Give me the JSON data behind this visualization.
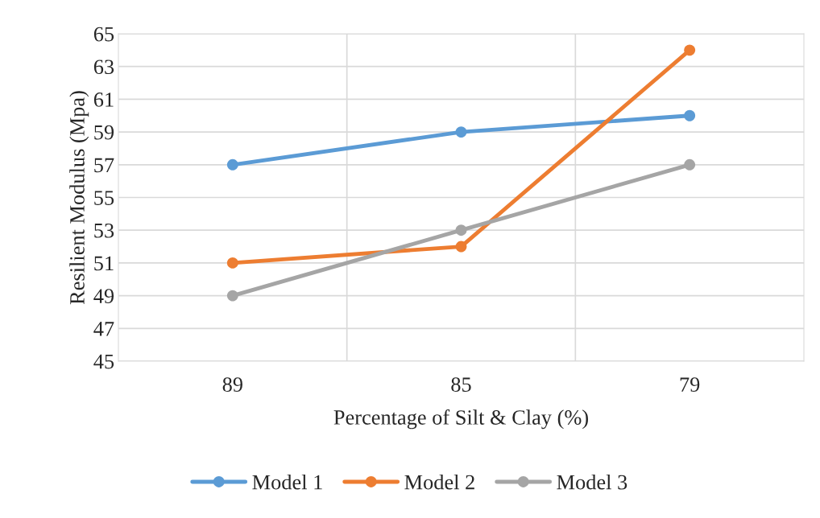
{
  "chart_data": {
    "type": "line",
    "xlabel": "Percentage of Silt & Clay (%)",
    "ylabel": "Resilient Modulus (Mpa)",
    "categories": [
      "89",
      "85",
      "79"
    ],
    "series": [
      {
        "name": "Model 1",
        "color": "#5b9bd5",
        "values": [
          57,
          59,
          60
        ]
      },
      {
        "name": "Model 2",
        "color": "#ed7d31",
        "values": [
          51,
          52,
          64
        ]
      },
      {
        "name": "Model 3",
        "color": "#a5a5a5",
        "values": [
          49,
          53,
          57
        ]
      }
    ],
    "ylim": [
      45,
      65
    ],
    "yticks": [
      45,
      47,
      49,
      51,
      53,
      55,
      57,
      59,
      61,
      63,
      65
    ],
    "grid": true,
    "legend": "bottom",
    "marker": "circle",
    "line_style": "solid"
  }
}
